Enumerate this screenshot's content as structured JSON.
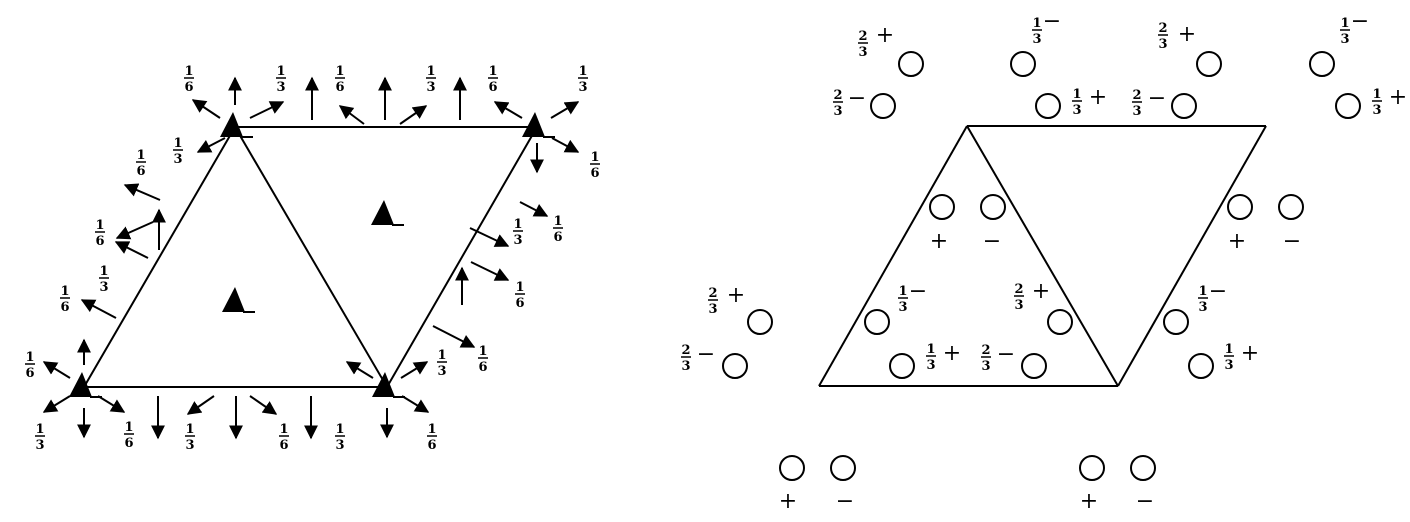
{
  "fractions": {
    "one_sixth": {
      "num": "1",
      "den": "6"
    },
    "one_third": {
      "num": "1",
      "den": "3"
    },
    "two_thirds": {
      "num": "2",
      "den": "3"
    }
  },
  "signs": {
    "plus": "+",
    "minus": "−"
  },
  "colors": {
    "ink": "#000000",
    "paper": "#ffffff"
  }
}
